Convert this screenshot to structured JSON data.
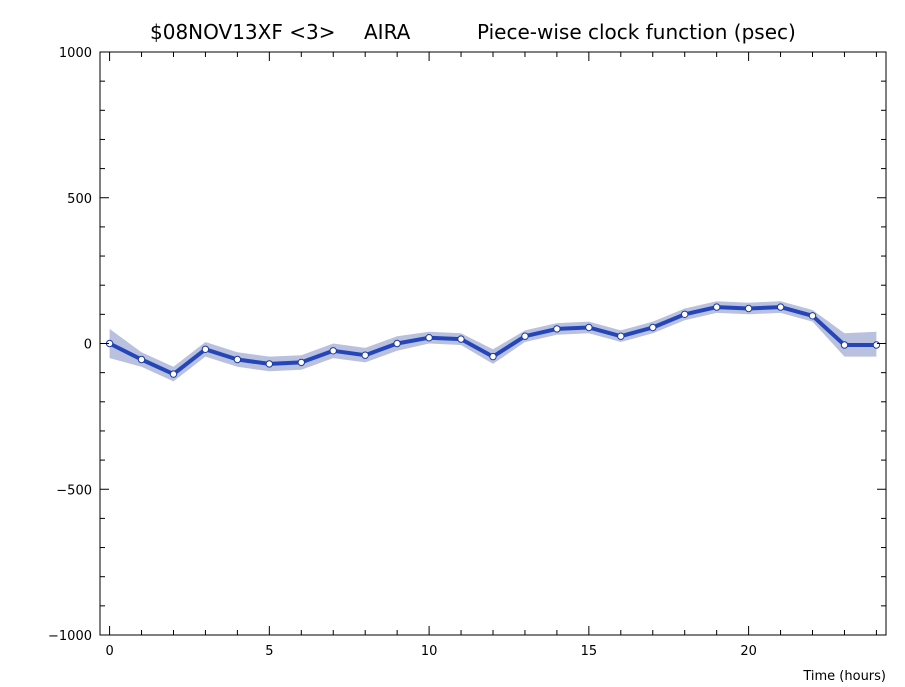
{
  "chart_data": {
    "type": "line",
    "title_session": "$08NOV13XF <3>",
    "title_station": "AIRA",
    "title_desc": "Piece-wise clock function (psec)",
    "xlabel": "Time (hours)",
    "ylabel": "",
    "xlim": [
      -0.3,
      24.3
    ],
    "ylim": [
      -1000,
      1000
    ],
    "x_ticks": [
      0,
      5,
      10,
      15,
      20
    ],
    "y_ticks": [
      -1000,
      -500,
      0,
      500,
      1000
    ],
    "grid": false,
    "colors": {
      "line": "#2446b8",
      "band": "#b9c1de",
      "point_fill": "#ffffff",
      "point_stroke": "#1f3a99"
    },
    "series": [
      {
        "x": [
          0,
          1,
          2,
          3,
          4,
          5,
          6,
          7,
          8,
          9,
          10,
          11,
          12,
          13,
          14,
          15,
          16,
          17,
          18,
          19,
          20,
          21,
          22,
          23,
          24
        ],
        "values": [
          0,
          -55,
          -105,
          -20,
          -55,
          -70,
          -65,
          -25,
          -40,
          0,
          20,
          15,
          -45,
          25,
          50,
          55,
          25,
          55,
          100,
          125,
          120,
          125,
          95,
          -5,
          -5
        ],
        "band_upper": [
          50,
          -30,
          -80,
          5,
          -30,
          -45,
          -40,
          0,
          -15,
          25,
          40,
          35,
          -20,
          45,
          70,
          75,
          45,
          75,
          120,
          145,
          140,
          145,
          115,
          35,
          40
        ],
        "band_lower": [
          -50,
          -80,
          -130,
          -45,
          -80,
          -95,
          -90,
          -50,
          -65,
          -25,
          0,
          -5,
          -70,
          5,
          30,
          35,
          5,
          35,
          80,
          105,
          100,
          105,
          75,
          -45,
          -45
        ]
      }
    ]
  }
}
